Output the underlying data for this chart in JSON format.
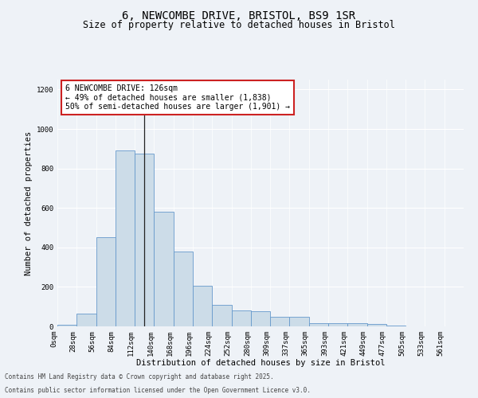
{
  "title_line1": "6, NEWCOMBE DRIVE, BRISTOL, BS9 1SR",
  "title_line2": "Size of property relative to detached houses in Bristol",
  "xlabel": "Distribution of detached houses by size in Bristol",
  "ylabel": "Number of detached properties",
  "annotation_line1": "6 NEWCOMBE DRIVE: 126sqm",
  "annotation_line2": "← 49% of detached houses are smaller (1,838)",
  "annotation_line3": "50% of semi-detached houses are larger (1,901) →",
  "footer_line1": "Contains HM Land Registry data © Crown copyright and database right 2025.",
  "footer_line2": "Contains public sector information licensed under the Open Government Licence v3.0.",
  "bin_labels": [
    "0sqm",
    "28sqm",
    "56sqm",
    "84sqm",
    "112sqm",
    "140sqm",
    "168sqm",
    "196sqm",
    "224sqm",
    "252sqm",
    "280sqm",
    "309sqm",
    "337sqm",
    "365sqm",
    "393sqm",
    "421sqm",
    "449sqm",
    "477sqm",
    "505sqm",
    "533sqm",
    "561sqm"
  ],
  "bar_values": [
    10,
    65,
    450,
    890,
    875,
    580,
    380,
    205,
    110,
    80,
    75,
    50,
    48,
    18,
    15,
    15,
    12,
    3,
    2,
    1,
    1
  ],
  "bar_color": "#ccdce8",
  "bar_edge_color": "#6699cc",
  "ylim": [
    0,
    1250
  ],
  "yticks": [
    0,
    200,
    400,
    600,
    800,
    1000,
    1200
  ],
  "bg_color": "#eef2f7",
  "grid_color": "#ffffff",
  "annotation_box_facecolor": "#ffffff",
  "annotation_box_edgecolor": "#cc2222",
  "title_fontsize": 10,
  "subtitle_fontsize": 8.5,
  "axis_label_fontsize": 7.5,
  "tick_fontsize": 6.5,
  "annotation_fontsize": 7.0,
  "footer_fontsize": 5.5
}
